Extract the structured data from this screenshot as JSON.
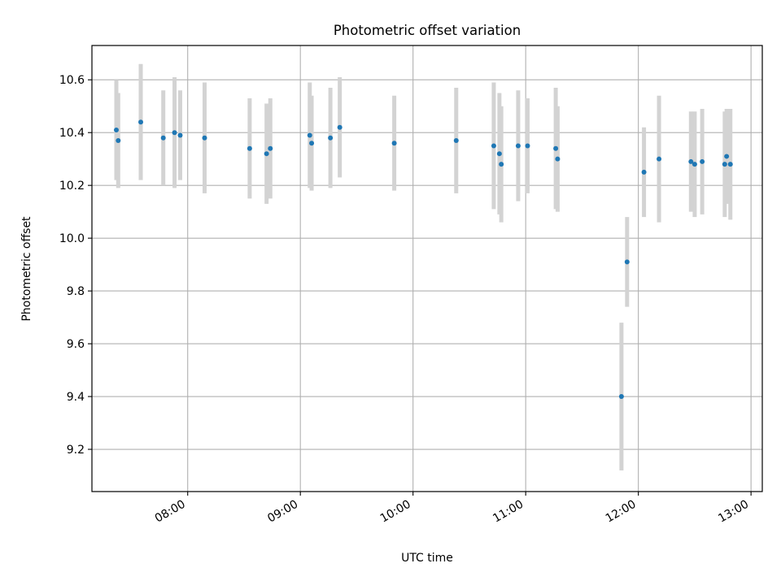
{
  "chart_data": {
    "type": "scatter",
    "title": "Photometric offset variation",
    "xlabel": "UTC time",
    "ylabel": "Photometric offset",
    "x_unit": "UTC time (HH:MM)",
    "xlim": [
      "07:09",
      "13:06"
    ],
    "ylim": [
      9.04,
      10.73
    ],
    "x_ticks": [
      "08:00",
      "09:00",
      "10:00",
      "11:00",
      "12:00",
      "13:00"
    ],
    "y_ticks": [
      9.2,
      9.4,
      9.6,
      9.8,
      10.0,
      10.2,
      10.4,
      10.6
    ],
    "grid": true,
    "legend": "none",
    "colors": {
      "points": "#1f77b4",
      "errorbars": "#d3d3d3",
      "grid": "#b0b0b0"
    },
    "series": [
      {
        "points": [
          {
            "x": "07:22",
            "y": 10.41,
            "err": 0.19
          },
          {
            "x": "07:23",
            "y": 10.37,
            "err": 0.18
          },
          {
            "x": "07:35",
            "y": 10.44,
            "err": 0.22
          },
          {
            "x": "07:47",
            "y": 10.38,
            "err": 0.18
          },
          {
            "x": "07:53",
            "y": 10.4,
            "err": 0.21
          },
          {
            "x": "07:56",
            "y": 10.39,
            "err": 0.17
          },
          {
            "x": "08:09",
            "y": 10.38,
            "err": 0.21
          },
          {
            "x": "08:33",
            "y": 10.34,
            "err": 0.19
          },
          {
            "x": "08:42",
            "y": 10.32,
            "err": 0.19
          },
          {
            "x": "08:44",
            "y": 10.34,
            "err": 0.19
          },
          {
            "x": "09:05",
            "y": 10.39,
            "err": 0.2
          },
          {
            "x": "09:06",
            "y": 10.36,
            "err": 0.18
          },
          {
            "x": "09:16",
            "y": 10.38,
            "err": 0.19
          },
          {
            "x": "09:21",
            "y": 10.42,
            "err": 0.19
          },
          {
            "x": "09:50",
            "y": 10.36,
            "err": 0.18
          },
          {
            "x": "10:23",
            "y": 10.37,
            "err": 0.2
          },
          {
            "x": "10:43",
            "y": 10.35,
            "err": 0.24
          },
          {
            "x": "10:46",
            "y": 10.32,
            "err": 0.23
          },
          {
            "x": "10:47",
            "y": 10.28,
            "err": 0.22
          },
          {
            "x": "10:56",
            "y": 10.35,
            "err": 0.21
          },
          {
            "x": "11:01",
            "y": 10.35,
            "err": 0.18
          },
          {
            "x": "11:16",
            "y": 10.34,
            "err": 0.23
          },
          {
            "x": "11:17",
            "y": 10.3,
            "err": 0.2
          },
          {
            "x": "11:51",
            "y": 9.4,
            "err": 0.28
          },
          {
            "x": "11:54",
            "y": 9.91,
            "err": 0.17
          },
          {
            "x": "12:03",
            "y": 10.25,
            "err": 0.17
          },
          {
            "x": "12:11",
            "y": 10.3,
            "err": 0.24
          },
          {
            "x": "12:28",
            "y": 10.29,
            "err": 0.19
          },
          {
            "x": "12:30",
            "y": 10.28,
            "err": 0.2
          },
          {
            "x": "12:34",
            "y": 10.29,
            "err": 0.2
          },
          {
            "x": "12:46",
            "y": 10.28,
            "err": 0.2
          },
          {
            "x": "12:47",
            "y": 10.31,
            "err": 0.18
          },
          {
            "x": "12:49",
            "y": 10.28,
            "err": 0.21
          }
        ]
      }
    ]
  }
}
